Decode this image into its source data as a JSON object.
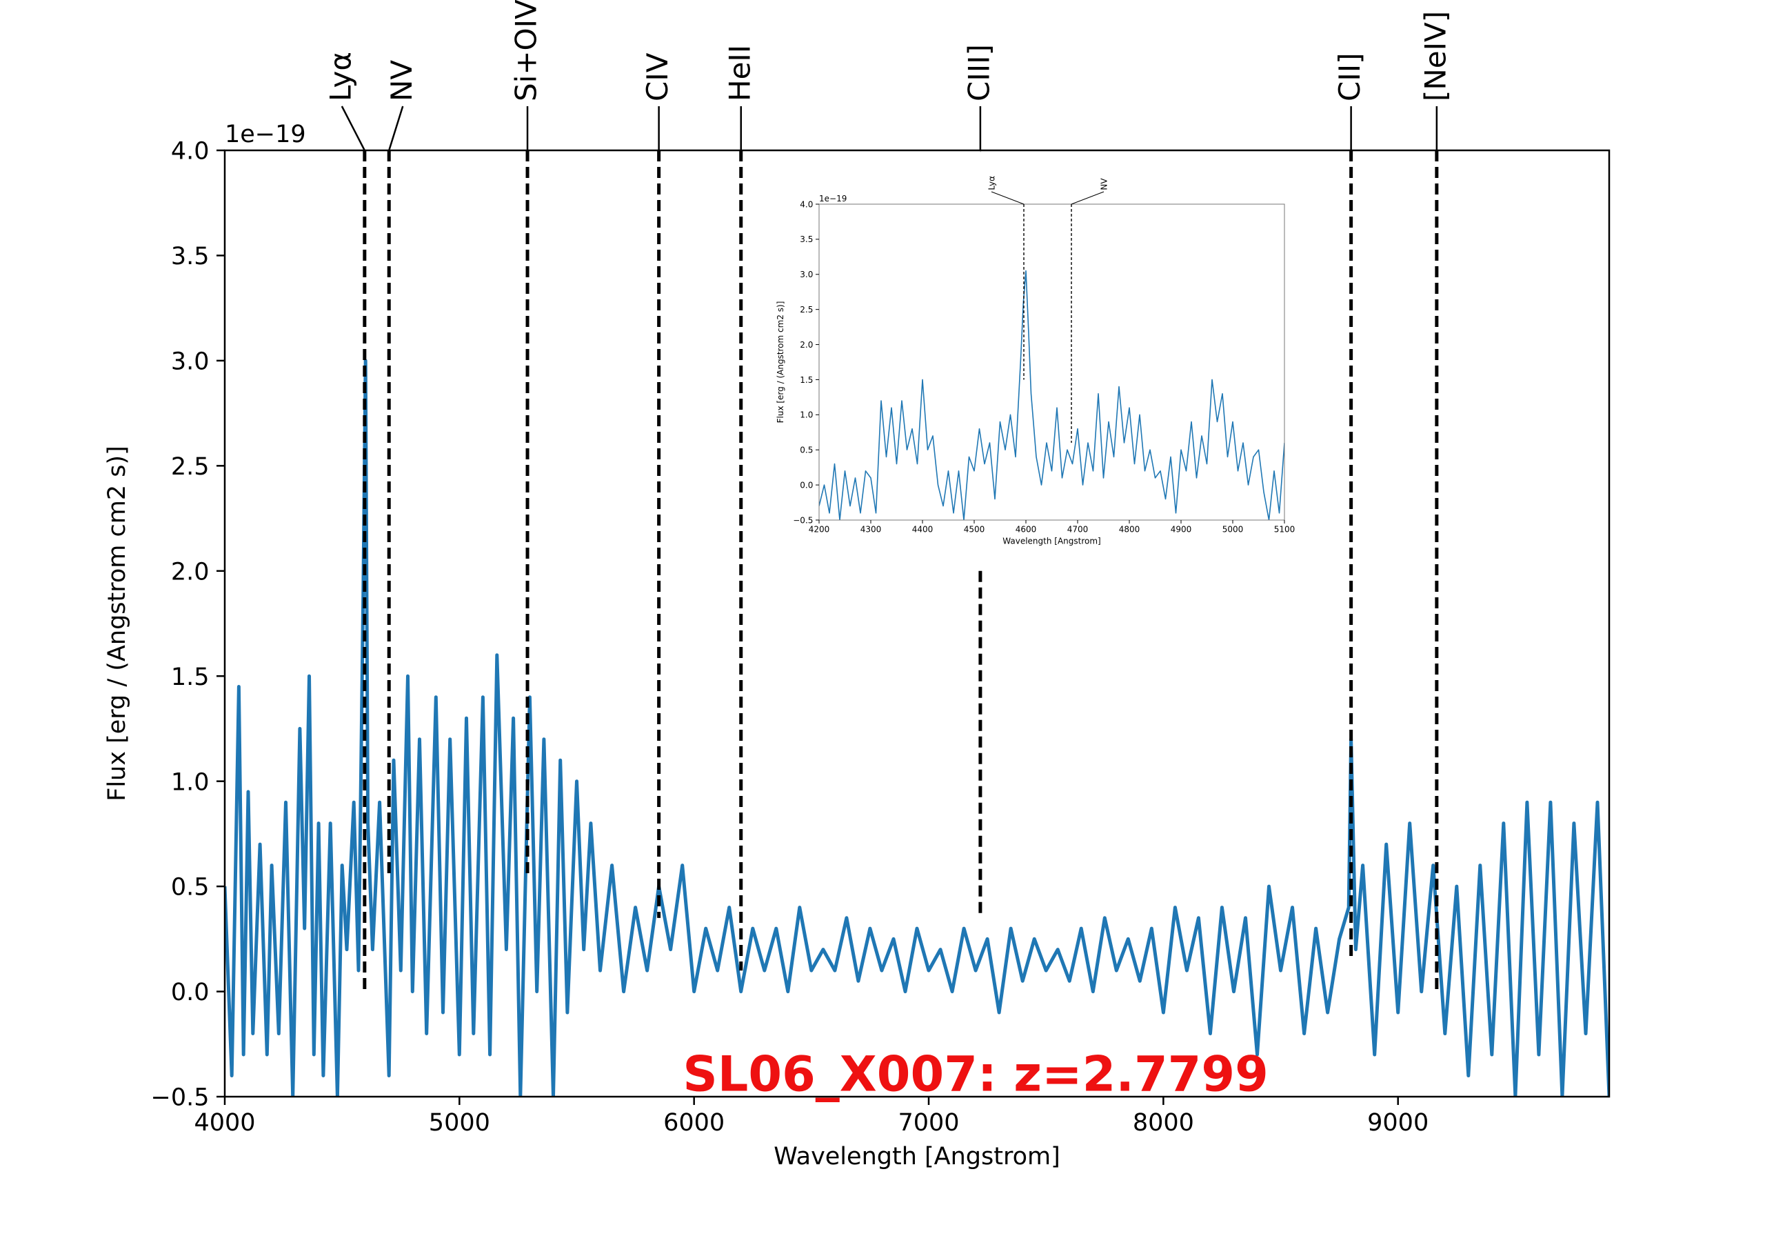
{
  "chart_data": [
    {
      "type": "line",
      "xlabel": "Wavelength [Angstrom]",
      "ylabel": "Flux [erg / (Angstrom cm2 s)]",
      "offset_text": "1e−19",
      "xlim": [
        4000,
        9900
      ],
      "ylim": [
        -0.5,
        4.0
      ],
      "xticks": [
        4000,
        5000,
        6000,
        7000,
        8000,
        9000
      ],
      "xtick_labels": [
        "4000",
        "5000",
        "6000",
        "7000",
        "8000",
        "9000"
      ],
      "yticks": [
        -0.5,
        0.0,
        0.5,
        1.0,
        1.5,
        2.0,
        2.5,
        3.0,
        3.5,
        4.0
      ],
      "ytick_labels": [
        "−0.5",
        "0.0",
        "0.5",
        "1.0",
        "1.5",
        "2.0",
        "2.5",
        "3.0",
        "3.5",
        "4.0"
      ],
      "annotation": "SL06_X007: z=2.7799",
      "annotation_color": "#ee1111",
      "line_color": "#1f77b4",
      "grid": false,
      "emission_lines": [
        {
          "label": "Lyα",
          "x": 4596,
          "y_bottom": 0.0
        },
        {
          "label": "NV",
          "x": 4700,
          "y_bottom": 0.55
        },
        {
          "label": "Si+OIV]",
          "x": 5290,
          "y_bottom": 0.55
        },
        {
          "label": "CIV",
          "x": 5850,
          "y_bottom": 0.35
        },
        {
          "label": "HeII",
          "x": 6200,
          "y_bottom": 0.1
        },
        {
          "label": "CIII]",
          "x": 7220,
          "y_bottom": 0.35,
          "gap": [
            2.0,
            4.0
          ]
        },
        {
          "label": "CII]",
          "x": 8800,
          "y_bottom": 0.15
        },
        {
          "label": "[NeIV]",
          "x": 9165,
          "y_bottom": 0.0
        }
      ],
      "series": [
        {
          "x": [
            4000,
            4030,
            4060,
            4080,
            4100,
            4120,
            4150,
            4180,
            4200,
            4230,
            4260,
            4290,
            4320,
            4340,
            4360,
            4380,
            4400,
            4420,
            4450,
            4480,
            4500,
            4520,
            4550,
            4570,
            4590,
            4600,
            4610,
            4630,
            4660,
            4700,
            4720,
            4750,
            4780,
            4800,
            4830,
            4860,
            4900,
            4930,
            4960,
            5000,
            5030,
            5060,
            5100,
            5130,
            5160,
            5200,
            5230,
            5260,
            5300,
            5330,
            5360,
            5400,
            5430,
            5460,
            5500,
            5530,
            5560,
            5600,
            5650,
            5700,
            5750,
            5800,
            5850,
            5900,
            5950,
            6000,
            6050,
            6100,
            6150,
            6200,
            6250,
            6300,
            6350,
            6400,
            6450,
            6500,
            6550,
            6600,
            6650,
            6700,
            6750,
            6800,
            6850,
            6900,
            6950,
            7000,
            7050,
            7100,
            7150,
            7200,
            7250,
            7300,
            7350,
            7400,
            7450,
            7500,
            7550,
            7600,
            7650,
            7700,
            7750,
            7800,
            7850,
            7900,
            7950,
            8000,
            8050,
            8100,
            8150,
            8200,
            8250,
            8300,
            8350,
            8400,
            8450,
            8500,
            8550,
            8600,
            8650,
            8700,
            8750,
            8790,
            8800,
            8820,
            8850,
            8900,
            8950,
            9000,
            9050,
            9100,
            9150,
            9200,
            9250,
            9300,
            9350,
            9400,
            9450,
            9500,
            9550,
            9600,
            9650,
            9700,
            9750,
            9800,
            9850,
            9900
          ],
          "values": [
            0.5,
            -0.4,
            1.45,
            -0.3,
            0.95,
            -0.2,
            0.7,
            -0.3,
            0.6,
            -0.2,
            0.9,
            -0.5,
            1.25,
            0.3,
            1.5,
            -0.3,
            0.8,
            -0.4,
            0.8,
            -0.5,
            0.6,
            0.2,
            0.9,
            0.1,
            1.9,
            3.0,
            0.8,
            0.2,
            0.9,
            -0.4,
            1.1,
            0.1,
            1.5,
            0.0,
            1.2,
            -0.2,
            1.4,
            -0.1,
            1.2,
            -0.3,
            1.3,
            -0.2,
            1.4,
            -0.3,
            1.6,
            0.2,
            1.3,
            -0.5,
            1.4,
            0.0,
            1.2,
            -0.5,
            1.1,
            -0.1,
            1.0,
            0.2,
            0.8,
            0.1,
            0.6,
            0.0,
            0.4,
            0.1,
            0.5,
            0.2,
            0.6,
            0.0,
            0.3,
            0.1,
            0.4,
            0.0,
            0.3,
            0.1,
            0.3,
            0.0,
            0.4,
            0.1,
            0.2,
            0.1,
            0.35,
            0.05,
            0.3,
            0.1,
            0.25,
            0.0,
            0.3,
            0.1,
            0.2,
            0.0,
            0.3,
            0.1,
            0.25,
            -0.1,
            0.3,
            0.05,
            0.25,
            0.1,
            0.2,
            0.05,
            0.3,
            0.0,
            0.35,
            0.1,
            0.25,
            0.05,
            0.3,
            -0.1,
            0.4,
            0.1,
            0.35,
            -0.2,
            0.4,
            0.0,
            0.35,
            -0.3,
            0.5,
            0.1,
            0.4,
            -0.2,
            0.3,
            -0.1,
            0.25,
            0.4,
            1.2,
            0.2,
            0.6,
            -0.3,
            0.7,
            -0.1,
            0.8,
            0.0,
            0.6,
            -0.2,
            0.5,
            -0.4,
            0.6,
            -0.3,
            0.8,
            -0.5,
            0.9,
            -0.3,
            0.9,
            -0.5,
            0.8,
            -0.2,
            0.9,
            -0.5
          ]
        }
      ]
    },
    {
      "type": "line",
      "xlabel": "Wavelength [Angstrom]",
      "ylabel": "Flux [erg / (Angstrom cm2 s)]",
      "offset_text": "1e−19",
      "xlim": [
        4200,
        5100
      ],
      "ylim": [
        -0.5,
        4.0
      ],
      "xticks": [
        4200,
        4300,
        4400,
        4500,
        4600,
        4700,
        4800,
        4900,
        5000,
        5100
      ],
      "xtick_labels": [
        "4200",
        "4300",
        "4400",
        "4500",
        "4600",
        "4700",
        "4800",
        "4900",
        "5000",
        "5100"
      ],
      "yticks": [
        -0.5,
        0.0,
        0.5,
        1.0,
        1.5,
        2.0,
        2.5,
        3.0,
        3.5,
        4.0
      ],
      "ytick_labels": [
        "−0.5",
        "0.0",
        "0.5",
        "1.0",
        "1.5",
        "2.0",
        "2.5",
        "3.0",
        "3.5",
        "4.0"
      ],
      "line_color": "#1f77b4",
      "grid": false,
      "emission_lines": [
        {
          "label": "Lyα",
          "x": 4596,
          "y_bottom": 1.5
        },
        {
          "label": "NV",
          "x": 4688,
          "y_bottom": 0.6
        }
      ],
      "series": [
        {
          "x": [
            4200,
            4210,
            4220,
            4230,
            4240,
            4250,
            4260,
            4270,
            4280,
            4290,
            4300,
            4310,
            4320,
            4330,
            4340,
            4350,
            4360,
            4370,
            4380,
            4390,
            4400,
            4410,
            4420,
            4430,
            4440,
            4450,
            4460,
            4470,
            4480,
            4490,
            4500,
            4510,
            4520,
            4530,
            4540,
            4550,
            4560,
            4570,
            4580,
            4590,
            4595,
            4600,
            4605,
            4610,
            4620,
            4630,
            4640,
            4650,
            4660,
            4670,
            4680,
            4690,
            4700,
            4710,
            4720,
            4730,
            4740,
            4750,
            4760,
            4770,
            4780,
            4790,
            4800,
            4810,
            4820,
            4830,
            4840,
            4850,
            4860,
            4870,
            4880,
            4890,
            4900,
            4910,
            4920,
            4930,
            4940,
            4950,
            4960,
            4970,
            4980,
            4990,
            5000,
            5010,
            5020,
            5030,
            5040,
            5050,
            5060,
            5070,
            5080,
            5090,
            5100
          ],
          "values": [
            -0.3,
            0.0,
            -0.4,
            0.3,
            -0.5,
            0.2,
            -0.3,
            0.1,
            -0.4,
            0.2,
            0.1,
            -0.4,
            1.2,
            0.4,
            1.1,
            0.3,
            1.2,
            0.5,
            0.8,
            0.3,
            1.5,
            0.5,
            0.7,
            0.0,
            -0.3,
            0.2,
            -0.4,
            0.2,
            -0.5,
            0.4,
            0.2,
            0.8,
            0.3,
            0.6,
            -0.2,
            0.9,
            0.5,
            1.0,
            0.4,
            1.8,
            2.6,
            3.05,
            2.2,
            1.3,
            0.4,
            0.0,
            0.6,
            0.2,
            1.1,
            0.1,
            0.5,
            0.3,
            0.8,
            0.0,
            0.6,
            0.2,
            1.3,
            0.1,
            0.9,
            0.4,
            1.4,
            0.6,
            1.1,
            0.3,
            1.0,
            0.2,
            0.5,
            0.1,
            0.2,
            -0.2,
            0.4,
            -0.4,
            0.5,
            0.2,
            0.9,
            0.1,
            0.7,
            0.3,
            1.5,
            0.9,
            1.3,
            0.4,
            0.9,
            0.2,
            0.6,
            0.0,
            0.4,
            0.5,
            -0.1,
            -0.5,
            0.2,
            -0.4,
            0.6
          ]
        }
      ]
    }
  ]
}
